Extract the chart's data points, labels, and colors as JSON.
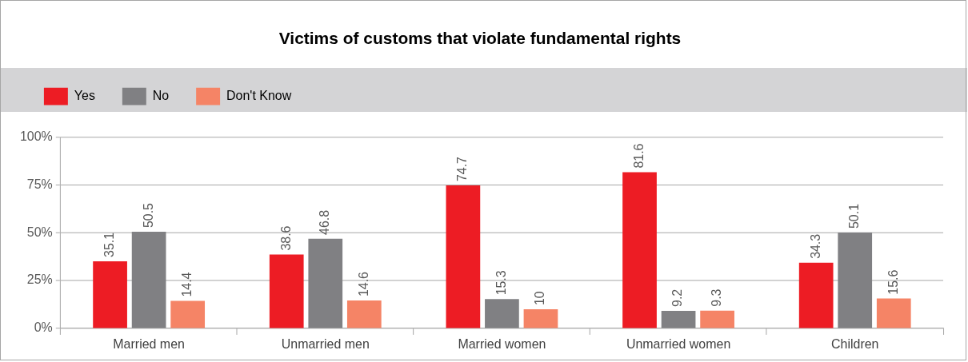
{
  "chart_data": {
    "type": "bar",
    "title": "Victims of customs that violate fundamental rights",
    "categories": [
      "Married men",
      "Unmarried men",
      "Married women",
      "Unmarried women",
      "Children"
    ],
    "series": [
      {
        "name": "Yes",
        "color": "#ed1c24",
        "values": [
          35.1,
          38.6,
          74.7,
          81.6,
          34.3
        ]
      },
      {
        "name": "No",
        "color": "#808083",
        "values": [
          50.5,
          46.8,
          15.3,
          9.2,
          50.1
        ]
      },
      {
        "name": "Don't Know",
        "color": "#f58466",
        "values": [
          14.4,
          14.6,
          10,
          9.3,
          15.6
        ]
      }
    ],
    "ylim": [
      0,
      100
    ],
    "yticks": [
      {
        "value": 0,
        "label": "0%"
      },
      {
        "value": 25,
        "label": "25%"
      },
      {
        "value": 50,
        "label": "50%"
      },
      {
        "value": 75,
        "label": "75%"
      },
      {
        "value": 100,
        "label": "100%"
      }
    ],
    "grid": "y",
    "legend": "top left",
    "data_labels": true
  }
}
